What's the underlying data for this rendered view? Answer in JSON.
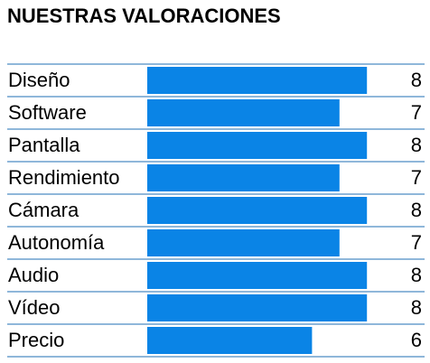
{
  "chart_data": {
    "type": "bar",
    "orientation": "horizontal",
    "title": "NUESTRAS VALORACIONES",
    "categories": [
      "Diseño",
      "Software",
      "Pantalla",
      "Rendimiento",
      "Cámara",
      "Autonomía",
      "Audio",
      "Vídeo",
      "Precio"
    ],
    "values": [
      8,
      7,
      8,
      7,
      8,
      7,
      8,
      8,
      6
    ],
    "color": "#0a84e6",
    "line_color": "#1f6fb5",
    "xlim": [
      0,
      10
    ]
  }
}
